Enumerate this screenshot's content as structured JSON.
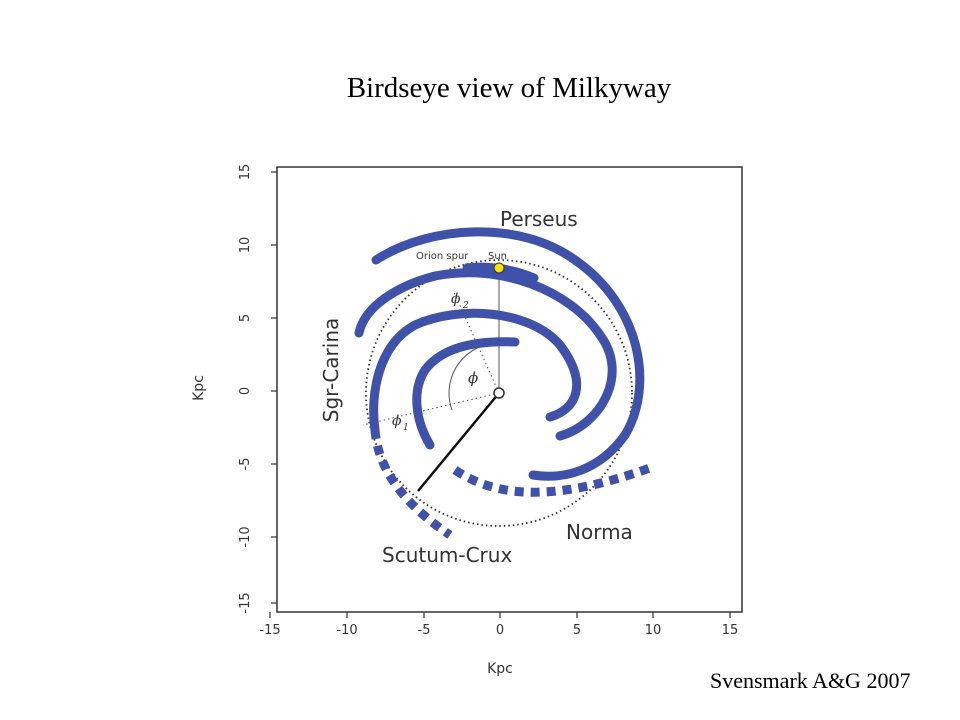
{
  "slide": {
    "title": "Birdseye view of Milkyway",
    "credit": "Svensmark A&G 2007"
  },
  "diagram": {
    "x_axis_label": "Kpc",
    "y_axis_label": "Kpc",
    "x_ticks": [
      "-15",
      "-10",
      "-5",
      "0",
      "5",
      "10",
      "15"
    ],
    "y_ticks": [
      "15",
      "10",
      "5",
      "0",
      "-5",
      "-10",
      "-15"
    ],
    "range_kpc": [
      -15,
      15
    ],
    "arm_labels": {
      "perseus": "Perseus",
      "sgr_carina": "Sgr-Carina",
      "scutum_crux": "Scutum-Crux",
      "norma": "Norma",
      "orion_spur": "Orion spur",
      "sun": "Sun"
    },
    "angle_labels": {
      "phi": "ϕ",
      "phi1": "ϕ",
      "phi1_sub": "1",
      "phi2": "ϕ",
      "phi2_sub": "2"
    },
    "colors": {
      "arm": "#3f51a8",
      "sun": "#f2e600",
      "frame": "#333333"
    }
  }
}
